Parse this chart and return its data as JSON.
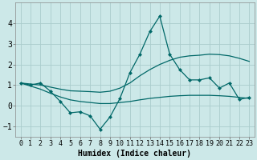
{
  "xlabel": "Humidex (Indice chaleur)",
  "background_color": "#cce8e8",
  "grid_color": "#aacccc",
  "line_color": "#006868",
  "x_values": [
    0,
    1,
    2,
    3,
    4,
    5,
    6,
    7,
    8,
    9,
    10,
    11,
    12,
    13,
    14,
    15,
    16,
    17,
    18,
    19,
    20,
    21,
    22,
    23
  ],
  "series_main": [
    1.1,
    1.0,
    1.1,
    0.7,
    0.2,
    -0.35,
    -0.3,
    -0.5,
    -1.15,
    -0.55,
    0.35,
    1.6,
    2.5,
    3.6,
    4.35,
    2.5,
    1.75,
    1.25,
    1.25,
    1.35,
    0.85,
    1.1,
    0.3,
    0.4
  ],
  "series_upper": [
    1.1,
    1.05,
    1.0,
    0.9,
    0.8,
    0.72,
    0.7,
    0.68,
    0.65,
    0.7,
    0.85,
    1.1,
    1.45,
    1.75,
    2.0,
    2.2,
    2.35,
    2.42,
    2.45,
    2.5,
    2.48,
    2.42,
    2.3,
    2.15
  ],
  "series_lower": [
    1.1,
    0.95,
    0.8,
    0.6,
    0.42,
    0.28,
    0.2,
    0.15,
    0.1,
    0.1,
    0.15,
    0.2,
    0.28,
    0.35,
    0.4,
    0.45,
    0.48,
    0.5,
    0.5,
    0.5,
    0.48,
    0.45,
    0.4,
    0.35
  ],
  "xlim": [
    -0.5,
    23.5
  ],
  "ylim": [
    -1.5,
    5.0
  ],
  "yticks": [
    -1,
    0,
    1,
    2,
    3,
    4
  ],
  "xticks": [
    0,
    1,
    2,
    3,
    4,
    5,
    6,
    7,
    8,
    9,
    10,
    11,
    12,
    13,
    14,
    15,
    16,
    17,
    18,
    19,
    20,
    21,
    22,
    23
  ],
  "markersize": 2.5,
  "linewidth": 0.9,
  "font_size": 7
}
